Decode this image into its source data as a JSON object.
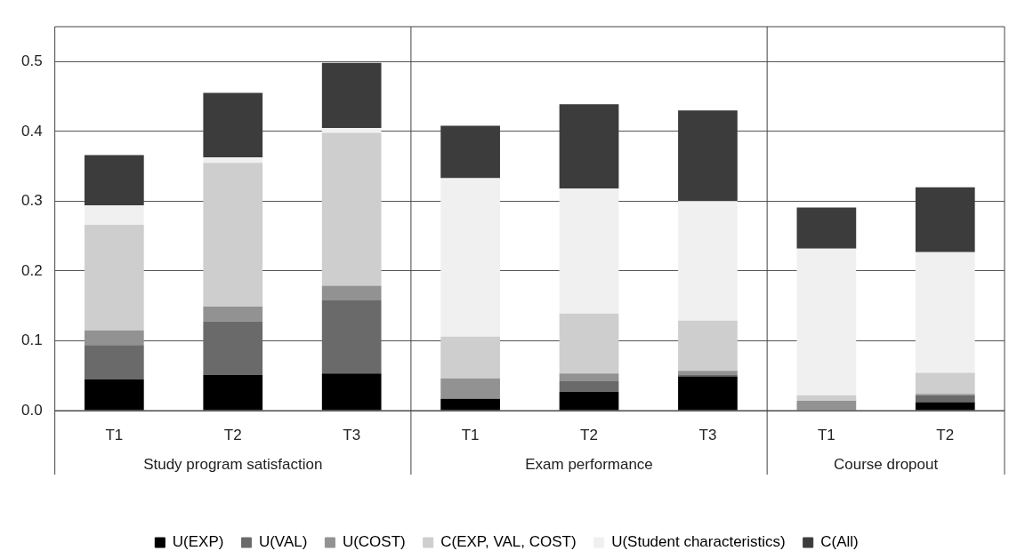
{
  "chart_data": {
    "type": "bar",
    "stacked": true,
    "categories": [
      "T1",
      "T2",
      "T3",
      "T1",
      "T2",
      "T3",
      "T1",
      "T2"
    ],
    "series": [
      {
        "name": "U(EXP)",
        "color": "#000000",
        "values": [
          0.045,
          0.051,
          0.053,
          0.017,
          0.027,
          0.049,
          0,
          0.012
        ]
      },
      {
        "name": "U(VAL)",
        "color": "#6a6a6a",
        "values": [
          0.049,
          0.077,
          0.105,
          0,
          0.015,
          0.002,
          0,
          0.01
        ]
      },
      {
        "name": "U(COST)",
        "color": "#929292",
        "values": [
          0.021,
          0.021,
          0.021,
          0.029,
          0.011,
          0.006,
          0.014,
          0.002
        ]
      },
      {
        "name": "C(EXP, VAL, COST)",
        "color": "#cecece",
        "values": [
          0.151,
          0.206,
          0.219,
          0.06,
          0.086,
          0.072,
          0.008,
          0.03
        ]
      },
      {
        "name": "U(Student characteristics)",
        "color": "#f0f0f0",
        "values": [
          0.028,
          0.008,
          0.007,
          0.227,
          0.179,
          0.171,
          0.21,
          0.173
        ]
      },
      {
        "name": "C(All)",
        "color": "#3c3c3c",
        "values": [
          0.072,
          0.092,
          0.093,
          0.075,
          0.121,
          0.13,
          0.059,
          0.093
        ]
      }
    ],
    "ylim": [
      0,
      0.55
    ],
    "yticks": [
      {
        "value": 0,
        "label": "0.0"
      },
      {
        "value": 0.1,
        "label": "0.1"
      },
      {
        "value": 0.2,
        "label": "0.2"
      },
      {
        "value": 0.3,
        "label": "0.3"
      },
      {
        "value": 0.4,
        "label": "0.4"
      },
      {
        "value": 0.5,
        "label": "0.5"
      }
    ],
    "grid": "y",
    "legend": "bottom",
    "annotations": [
      "Study program satisfaction",
      "Exam performance",
      "Course dropout"
    ]
  }
}
